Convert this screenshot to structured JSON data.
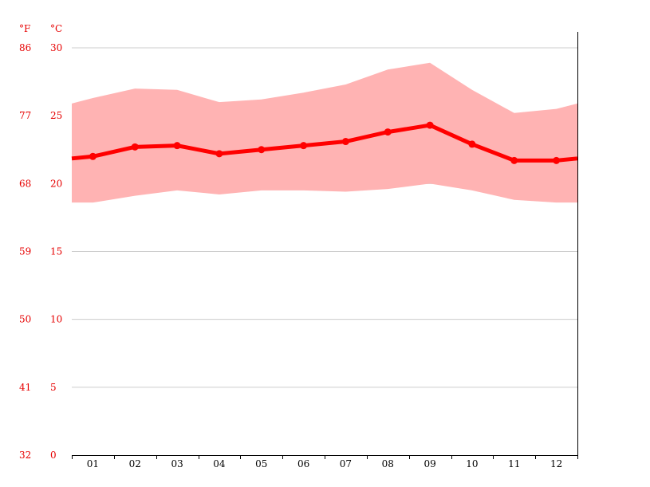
{
  "chart_data": {
    "type": "line",
    "units": {
      "fahrenheit": "°F",
      "celsius": "°C"
    },
    "y_ticks_c": [
      "30",
      "25",
      "20",
      "15",
      "10",
      "5",
      "0"
    ],
    "y_ticks_f": [
      "86",
      "77",
      "68",
      "59",
      "50",
      "41",
      "32"
    ],
    "ylim_c": [
      0,
      30
    ],
    "grid": true,
    "x_ticks": [
      "01",
      "02",
      "03",
      "04",
      "05",
      "06",
      "07",
      "08",
      "09",
      "10",
      "11",
      "12"
    ],
    "series": [
      {
        "values": [
          22.0,
          22.7,
          22.8,
          22.2,
          22.5,
          22.8,
          23.1,
          23.8,
          24.3,
          22.9,
          21.7,
          21.7
        ]
      }
    ],
    "band_high": [
      26.3,
      27.0,
      26.9,
      26.0,
      26.2,
      26.7,
      27.3,
      28.4,
      28.9,
      26.9,
      25.2,
      25.5
    ],
    "band_low": [
      18.6,
      19.1,
      19.5,
      19.2,
      19.5,
      19.5,
      19.4,
      19.6,
      20.0,
      19.5,
      18.8,
      18.6
    ],
    "colors": {
      "line": "#ff0000",
      "band": "#ffb3b3",
      "grid": "#cccccc",
      "axis": "#000000",
      "label": "#e60000"
    }
  }
}
